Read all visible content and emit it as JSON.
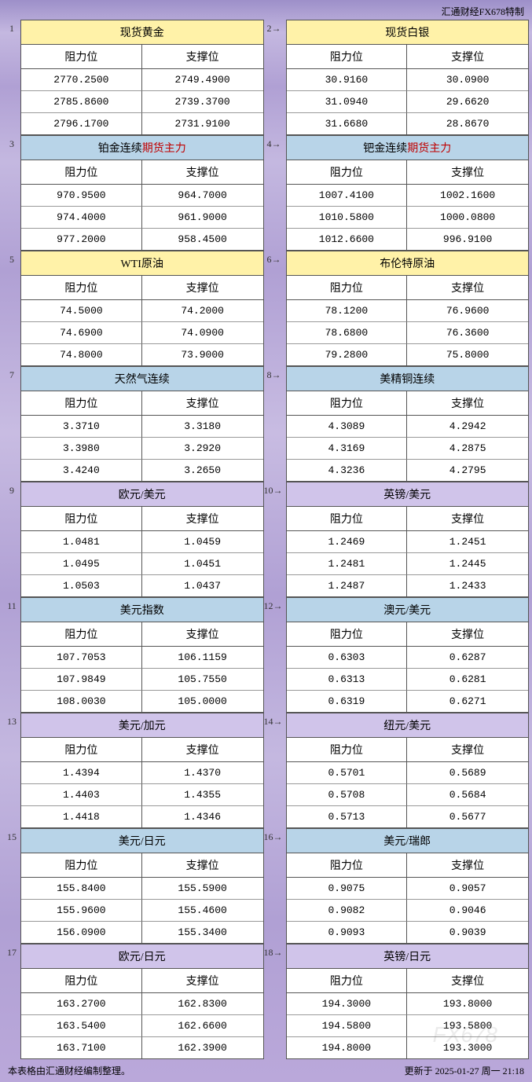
{
  "header_credit": "汇通财经FX678特制",
  "labels": {
    "resistance": "阻力位",
    "support": "支撑位"
  },
  "colors": {
    "yellow": "#fff2a8",
    "blue": "#b8d4e8",
    "purple": "#d0c4ea",
    "accent": "#c00000"
  },
  "blocks": [
    {
      "n": 1,
      "title_plain": "现货黄金",
      "title_accent": "",
      "color": "yellow",
      "rows": [
        [
          "2770.2500",
          "2749.4900"
        ],
        [
          "2785.8600",
          "2739.3700"
        ],
        [
          "2796.1700",
          "2731.9100"
        ]
      ]
    },
    {
      "n": 2,
      "title_plain": "现货白银",
      "title_accent": "",
      "color": "yellow",
      "rows": [
        [
          "30.9160",
          "30.0900"
        ],
        [
          "31.0940",
          "29.6620"
        ],
        [
          "31.6680",
          "28.8670"
        ]
      ]
    },
    {
      "n": 3,
      "title_plain": "铂金连续",
      "title_accent": "期货主力",
      "color": "blue",
      "rows": [
        [
          "970.9500",
          "964.7000"
        ],
        [
          "974.4000",
          "961.9000"
        ],
        [
          "977.2000",
          "958.4500"
        ]
      ]
    },
    {
      "n": 4,
      "title_plain": "钯金连续",
      "title_accent": "期货主力",
      "color": "blue",
      "rows": [
        [
          "1007.4100",
          "1002.1600"
        ],
        [
          "1010.5800",
          "1000.0800"
        ],
        [
          "1012.6600",
          "996.9100"
        ]
      ]
    },
    {
      "n": 5,
      "title_plain": "WTI原油",
      "title_accent": "",
      "color": "yellow",
      "rows": [
        [
          "74.5000",
          "74.2000"
        ],
        [
          "74.6900",
          "74.0900"
        ],
        [
          "74.8000",
          "73.9000"
        ]
      ]
    },
    {
      "n": 6,
      "title_plain": "布伦特原油",
      "title_accent": "",
      "color": "yellow",
      "rows": [
        [
          "78.1200",
          "76.9600"
        ],
        [
          "78.6800",
          "76.3600"
        ],
        [
          "79.2800",
          "75.8000"
        ]
      ]
    },
    {
      "n": 7,
      "title_plain": "天然气连续",
      "title_accent": "",
      "color": "blue",
      "rows": [
        [
          "3.3710",
          "3.3180"
        ],
        [
          "3.3980",
          "3.2920"
        ],
        [
          "3.4240",
          "3.2650"
        ]
      ]
    },
    {
      "n": 8,
      "title_plain": "美精铜连续",
      "title_accent": "",
      "color": "blue",
      "rows": [
        [
          "4.3089",
          "4.2942"
        ],
        [
          "4.3169",
          "4.2875"
        ],
        [
          "4.3236",
          "4.2795"
        ]
      ]
    },
    {
      "n": 9,
      "title_plain": "欧元/美元",
      "title_accent": "",
      "color": "purple",
      "rows": [
        [
          "1.0481",
          "1.0459"
        ],
        [
          "1.0495",
          "1.0451"
        ],
        [
          "1.0503",
          "1.0437"
        ]
      ]
    },
    {
      "n": 10,
      "title_plain": "英镑/美元",
      "title_accent": "",
      "color": "purple",
      "rows": [
        [
          "1.2469",
          "1.2451"
        ],
        [
          "1.2481",
          "1.2445"
        ],
        [
          "1.2487",
          "1.2433"
        ]
      ]
    },
    {
      "n": 11,
      "title_plain": "美元指数",
      "title_accent": "",
      "color": "blue",
      "rows": [
        [
          "107.7053",
          "106.1159"
        ],
        [
          "107.9849",
          "105.7550"
        ],
        [
          "108.0030",
          "105.0000"
        ]
      ]
    },
    {
      "n": 12,
      "title_plain": "澳元/美元",
      "title_accent": "",
      "color": "blue",
      "rows": [
        [
          "0.6303",
          "0.6287"
        ],
        [
          "0.6313",
          "0.6281"
        ],
        [
          "0.6319",
          "0.6271"
        ]
      ]
    },
    {
      "n": 13,
      "title_plain": "美元/加元",
      "title_accent": "",
      "color": "purple",
      "rows": [
        [
          "1.4394",
          "1.4370"
        ],
        [
          "1.4403",
          "1.4355"
        ],
        [
          "1.4418",
          "1.4346"
        ]
      ]
    },
    {
      "n": 14,
      "title_plain": "纽元/美元",
      "title_accent": "",
      "color": "purple",
      "rows": [
        [
          "0.5701",
          "0.5689"
        ],
        [
          "0.5708",
          "0.5684"
        ],
        [
          "0.5713",
          "0.5677"
        ]
      ]
    },
    {
      "n": 15,
      "title_plain": "美元/日元",
      "title_accent": "",
      "color": "blue",
      "rows": [
        [
          "155.8400",
          "155.5900"
        ],
        [
          "155.9600",
          "155.4600"
        ],
        [
          "156.0900",
          "155.3400"
        ]
      ]
    },
    {
      "n": 16,
      "title_plain": "美元/瑞郎",
      "title_accent": "",
      "color": "blue",
      "rows": [
        [
          "0.9075",
          "0.9057"
        ],
        [
          "0.9082",
          "0.9046"
        ],
        [
          "0.9093",
          "0.9039"
        ]
      ]
    },
    {
      "n": 17,
      "title_plain": "欧元/日元",
      "title_accent": "",
      "color": "purple",
      "rows": [
        [
          "163.2700",
          "162.8300"
        ],
        [
          "163.5400",
          "162.6600"
        ],
        [
          "163.7100",
          "162.3900"
        ]
      ]
    },
    {
      "n": 18,
      "title_plain": "英镑/日元",
      "title_accent": "",
      "color": "purple",
      "rows": [
        [
          "194.3000",
          "193.8000"
        ],
        [
          "194.5800",
          "193.5800"
        ],
        [
          "194.8000",
          "193.3000"
        ]
      ]
    }
  ],
  "footer_left": "本表格由汇通财经编制整理。",
  "footer_right": "更新于 2025-01-27 周一 21:18",
  "watermark": "FX678"
}
